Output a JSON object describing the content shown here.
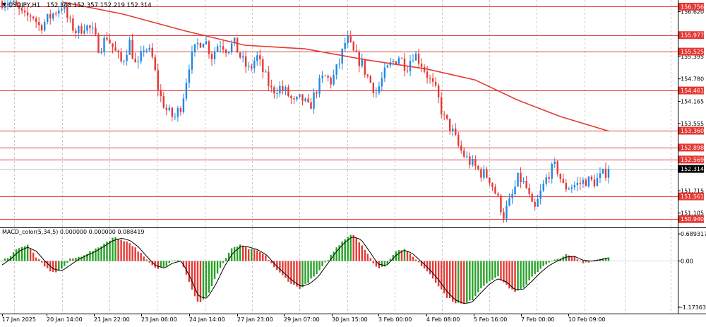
{
  "header": {
    "symbol_text": "USDJPY,H1",
    "ohlc_text": "152.348 152.357 152.219 152.314"
  },
  "macd_header": {
    "text": "MACD_color(5,34,5) 0.000000 0.000000 0.088419"
  },
  "colors": {
    "background": "#ffffff",
    "grid": "#c8c8c8",
    "bull": "#1e88e5",
    "bear": "#e53935",
    "ma_line": "#e53935",
    "level_line": "#e53935",
    "level_label_bg": "#e53935",
    "current_price_bg": "#000000",
    "macd_signal": "#000000",
    "macd_pos": "#27a227",
    "macd_neg": "#e53935"
  },
  "icons": {
    "symbol_menu": "triangle-down-icon"
  },
  "chart_data": [
    {
      "type": "candlestick",
      "title": "USDJPY,H1",
      "timeframe": "H1",
      "grid": true,
      "y_range": [
        150.75,
        156.9
      ],
      "price_tick_labels": [
        {
          "label": "156.620",
          "value": 156.62
        },
        {
          "label": "155.395",
          "value": 155.395
        },
        {
          "label": "154.780",
          "value": 154.78
        },
        {
          "label": "154.165",
          "value": 154.165
        },
        {
          "label": "153.555",
          "value": 153.555
        },
        {
          "label": "151.715",
          "value": 151.715
        },
        {
          "label": "151.105",
          "value": 151.105
        }
      ],
      "x_tick_labels": [
        "17 Jan 2025",
        "20 Jan 14:00",
        "21 Jan 22:00",
        "23 Jan 06:00",
        "24 Jan 14:00",
        "27 Jan 23:00",
        "29 Jan 07:00",
        "30 Jan 15:00",
        "3 Feb 00:00",
        "4 Feb 08:00",
        "5 Feb 16:00",
        "7 Feb 00:00",
        "10 Feb 09:00"
      ],
      "horizontal_levels": [
        {
          "label": "156.756",
          "value": 156.756
        },
        {
          "label": "155.977",
          "value": 155.977
        },
        {
          "label": "155.525",
          "value": 155.525
        },
        {
          "label": "154.461",
          "value": 154.461
        },
        {
          "label": "153.360",
          "value": 153.36
        },
        {
          "label": "152.898",
          "value": 152.898
        },
        {
          "label": "152.569",
          "value": 152.569
        },
        {
          "label": "151.561",
          "value": 151.561
        },
        {
          "label": "150.940",
          "value": 150.94
        }
      ],
      "current_price": {
        "label": "152.314",
        "value": 152.314
      },
      "price_path": [
        156.9,
        156.9,
        156.7,
        156.45,
        156.55,
        156.2,
        156.4,
        156.6,
        156.8,
        156.3,
        156.05,
        156.25,
        156.1,
        155.6,
        155.95,
        155.55,
        155.2,
        155.8,
        155.0,
        155.7,
        155.4,
        154.35,
        153.9,
        153.7,
        154.1,
        155.2,
        155.7,
        155.9,
        155.4,
        155.8,
        155.6,
        155.75,
        155.3,
        155.0,
        155.4,
        154.9,
        154.45,
        154.55,
        154.4,
        154.1,
        154.25,
        153.95,
        154.5,
        154.85,
        154.7,
        155.2,
        155.9,
        155.45,
        155.2,
        154.75,
        154.4,
        154.9,
        155.2,
        155.4,
        155.1,
        155.5,
        155.2,
        154.8,
        154.4,
        153.7,
        153.4,
        152.9,
        152.6,
        152.4,
        152.2,
        152.1,
        151.6,
        151.05,
        151.5,
        152.1,
        151.8,
        151.1,
        151.7,
        152.2,
        152.4,
        151.8,
        151.85,
        151.9,
        152.0,
        151.95,
        152.1,
        152.31
      ],
      "moving_average": [
        {
          "x": 0.1,
          "y": 156.88
        },
        {
          "x": 0.2,
          "y": 156.55
        },
        {
          "x": 0.3,
          "y": 156.1
        },
        {
          "x": 0.4,
          "y": 155.7
        },
        {
          "x": 0.5,
          "y": 155.6
        },
        {
          "x": 0.6,
          "y": 155.3
        },
        {
          "x": 0.7,
          "y": 155.05
        },
        {
          "x": 0.78,
          "y": 154.75
        },
        {
          "x": 0.85,
          "y": 154.2
        },
        {
          "x": 0.92,
          "y": 153.75
        },
        {
          "x": 1.0,
          "y": 153.35
        }
      ]
    },
    {
      "type": "bar",
      "title": "MACD_color(5,34,5)",
      "y_range": [
        -1.3,
        0.8
      ],
      "tick_labels": [
        {
          "label": "0.689317",
          "value": 0.689317
        },
        {
          "label": "0.00",
          "value": 0.0
        },
        {
          "label": "-1.173633",
          "value": -1.173633
        }
      ],
      "histogram_path": [
        0.0,
        0.15,
        0.35,
        0.4,
        0.1,
        -0.15,
        -0.3,
        -0.2,
        0.05,
        0.1,
        0.2,
        0.3,
        0.45,
        0.6,
        0.55,
        0.45,
        0.25,
        0.0,
        -0.2,
        -0.15,
        0.05,
        0.0,
        -0.6,
        -1.1,
        -0.9,
        -0.4,
        0.0,
        0.35,
        0.4,
        0.3,
        0.25,
        0.1,
        -0.2,
        -0.4,
        -0.6,
        -0.7,
        -0.5,
        -0.3,
        0.0,
        0.3,
        0.55,
        0.7,
        0.45,
        0.1,
        -0.2,
        -0.1,
        0.25,
        0.3,
        0.15,
        -0.1,
        -0.3,
        -0.6,
        -0.9,
        -1.05,
        -1.1,
        -1.0,
        -0.7,
        -0.5,
        -0.4,
        -0.6,
        -0.8,
        -0.7,
        -0.4,
        -0.2,
        -0.05,
        0.05,
        0.15,
        0.1,
        -0.05,
        0.0,
        0.05,
        0.12
      ],
      "signal_path": [
        -0.1,
        0.05,
        0.25,
        0.35,
        0.25,
        0.0,
        -0.2,
        -0.25,
        -0.1,
        0.05,
        0.15,
        0.25,
        0.38,
        0.52,
        0.58,
        0.52,
        0.35,
        0.1,
        -0.12,
        -0.18,
        -0.05,
        0.0,
        -0.4,
        -0.9,
        -0.95,
        -0.6,
        -0.15,
        0.2,
        0.38,
        0.35,
        0.28,
        0.15,
        -0.1,
        -0.3,
        -0.5,
        -0.65,
        -0.58,
        -0.4,
        -0.1,
        0.2,
        0.45,
        0.62,
        0.55,
        0.25,
        -0.08,
        -0.12,
        0.12,
        0.28,
        0.2,
        0.0,
        -0.2,
        -0.45,
        -0.75,
        -0.98,
        -1.08,
        -1.05,
        -0.82,
        -0.6,
        -0.45,
        -0.52,
        -0.72,
        -0.72,
        -0.52,
        -0.3,
        -0.12,
        0.0,
        0.1,
        0.12,
        0.02,
        0.0,
        0.03,
        0.08
      ],
      "last_value": 0.088419
    }
  ]
}
